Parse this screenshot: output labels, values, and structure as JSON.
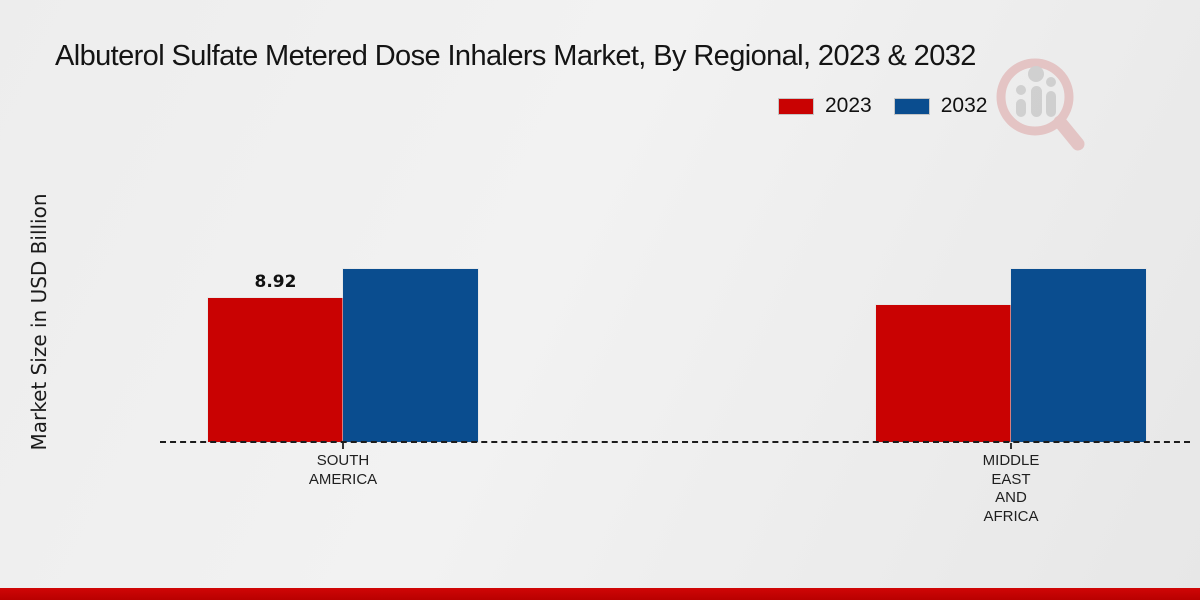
{
  "title": "Albuterol Sulfate Metered Dose Inhalers Market, By Regional, 2023 & 2032",
  "y_axis_label": "Market Size in USD Billion",
  "legend": [
    {
      "label": "2023",
      "color": "#c90202"
    },
    {
      "label": "2032",
      "color": "#0a4d8f"
    }
  ],
  "watermark_icon": "magnifier-bar-chart-logo-icon",
  "colors": {
    "bar_2023": "#c90202",
    "bar_2032": "#0a4d8f",
    "footer_strip": "#c00404",
    "background": "#ececec",
    "baseline": "#1c1c1c"
  },
  "chart_data": {
    "type": "bar",
    "title": "Albuterol Sulfate Metered Dose Inhalers Market, By Regional, 2023 & 2032",
    "categories": [
      "SOUTH\nAMERICA",
      "MIDDLE\nEAST\nAND\nAFRICA"
    ],
    "series": [
      {
        "name": "2023",
        "color": "#c90202",
        "values": [
          8.92,
          8.49
        ],
        "labels": [
          "8.92",
          ""
        ]
      },
      {
        "name": "2032",
        "color": "#0a4d8f",
        "values": [
          10.72,
          10.72
        ],
        "labels": [
          "",
          ""
        ]
      }
    ],
    "xlabel": "",
    "ylabel": "Market Size in USD Billion",
    "ylim": [
      0,
      11
    ],
    "grid": false,
    "legend_position": "top-right",
    "value_axis_hidden": true,
    "baseline_style": "dashed"
  }
}
